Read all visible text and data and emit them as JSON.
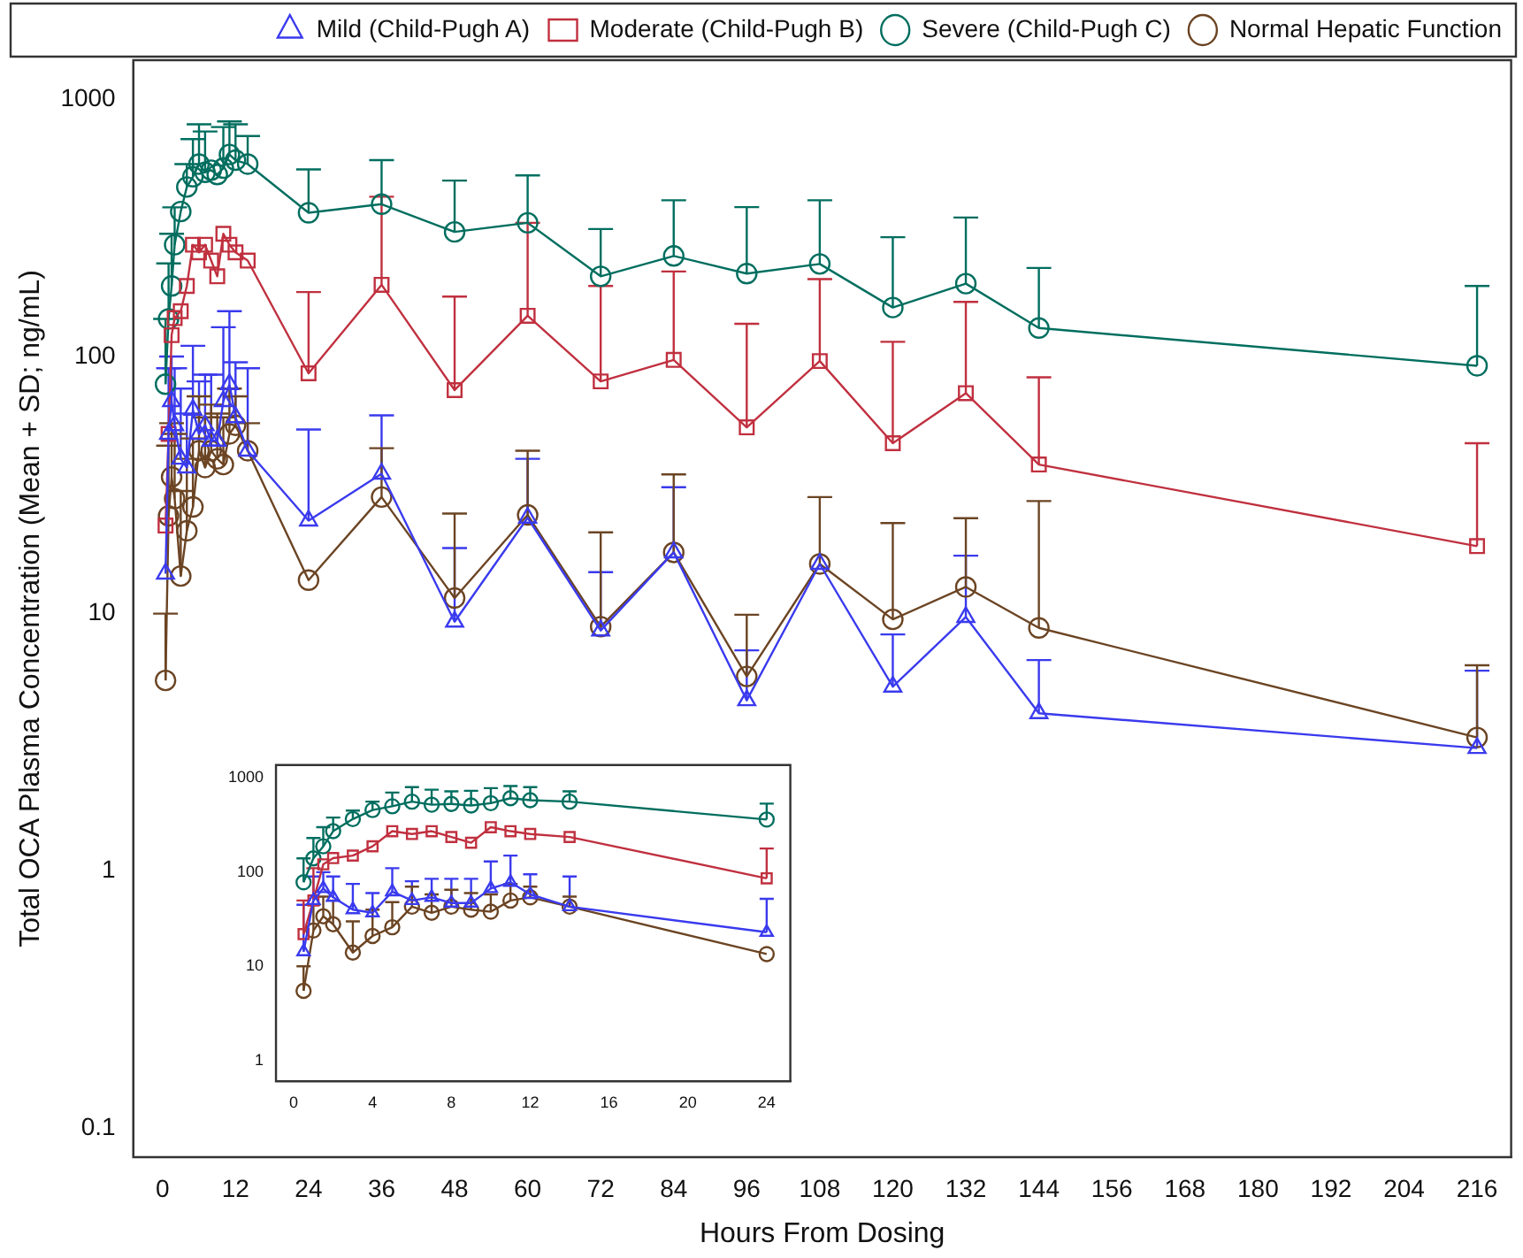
{
  "chart_data": [
    {
      "type": "line",
      "xlabel": "Hours From Dosing",
      "ylabel": "Total OCA Plasma Concentration (Mean + SD; ng/mL)",
      "log": "y",
      "xlim": [
        -4.8,
        221.6
      ],
      "xticks": [
        0,
        12,
        24,
        36,
        48,
        60,
        72,
        84,
        96,
        108,
        120,
        132,
        144,
        156,
        168,
        180,
        192,
        204,
        216
      ],
      "ylim": [
        0.077,
        1420
      ],
      "yticks": [
        0.1,
        1,
        10,
        100,
        1000
      ],
      "grid": false,
      "legend": "top",
      "x": [
        0.5,
        1,
        1.5,
        2,
        3,
        4,
        5,
        6,
        7,
        8,
        9,
        10,
        11,
        12,
        14,
        24,
        36,
        48,
        60,
        72,
        84,
        96,
        108,
        120,
        132,
        144,
        216
      ],
      "series": [
        {
          "name": "Mild (Child-Pugh A)",
          "color": "#3a3aee",
          "marker": "triangle",
          "values": [
            14.3,
            50,
            67,
            54,
            40,
            37,
            62,
            50,
            54,
            47,
            47,
            67,
            78,
            58,
            43,
            23,
            35,
            9.3,
            23.6,
            8.6,
            17.3,
            4.6,
            15.6,
            5.2,
            9.7,
            4.1,
            3.0
          ],
          "errors": [
            null,
            [
              50,
              90
            ],
            [
              67,
              100
            ],
            [
              54,
              90
            ],
            [
              40,
              75
            ],
            [
              37,
              60
            ],
            [
              62,
              110
            ],
            [
              50,
              80
            ],
            [
              54,
              85
            ],
            [
              47,
              85
            ],
            null,
            [
              67,
              130
            ],
            [
              78,
              150
            ],
            [
              58,
              95
            ],
            [
              43,
              90
            ],
            [
              23,
              52
            ],
            [
              35,
              59
            ],
            [
              9.3,
              18
            ],
            [
              23.6,
              40
            ],
            [
              8.6,
              14.5
            ],
            [
              17.3,
              31
            ],
            [
              4.6,
              7.2
            ],
            null,
            [
              5.2,
              8.3
            ],
            [
              9.7,
              16.8
            ],
            [
              4.1,
              6.6
            ],
            [
              3.0,
              6.0
            ]
          ]
        },
        {
          "name": "Moderate (Child-Pugh B)",
          "color": "#c0303f",
          "marker": "square",
          "values": [
            22,
            50,
            121,
            141,
            150,
            188,
            272,
            254,
            272,
            236,
            205,
            300,
            272,
            254,
            236,
            86,
            190,
            74,
            144,
            80,
            97,
            53,
            96,
            46,
            72,
            38,
            18.3
          ],
          "errors": [
            null,
            null,
            null,
            null,
            null,
            null,
            null,
            null,
            null,
            null,
            null,
            null,
            null,
            null,
            null,
            [
              86,
              178
            ],
            [
              190,
              418
            ],
            [
              74,
              171
            ],
            [
              144,
              331
            ],
            [
              80,
              188
            ],
            [
              97,
              214
            ],
            [
              53,
              134
            ],
            [
              96,
              200
            ],
            [
              46,
              114
            ],
            [
              72,
              163
            ],
            [
              38,
              83
            ],
            [
              18.3,
              46
            ]
          ]
        },
        {
          "name": "Severe (Child-Pugh C)",
          "color": "#006e5f",
          "marker": "circle",
          "values": [
            78,
            140,
            188,
            272,
            366,
            456,
            500,
            560,
            520,
            530,
            510,
            540,
            610,
            580,
            560,
            362,
            391,
            305,
            331,
            205,
            246,
            210,
            229,
            155,
            192,
            129,
            92
          ],
          "errors": [
            [
              78,
              140
            ],
            [
              140,
              230
            ],
            [
              188,
              300
            ],
            [
              272,
              380
            ],
            null,
            [
              456,
              560
            ],
            [
              500,
              700
            ],
            [
              560,
              800
            ],
            [
              520,
              750
            ],
            null,
            null,
            [
              540,
              780
            ],
            [
              610,
              820
            ],
            [
              580,
              800
            ],
            [
              560,
              720
            ],
            [
              362,
              534
            ],
            [
              391,
              580
            ],
            [
              305,
              483
            ],
            [
              331,
              506
            ],
            [
              205,
              313
            ],
            [
              246,
              405
            ],
            [
              210,
              381
            ],
            [
              229,
              405
            ],
            [
              155,
              291
            ],
            [
              192,
              347
            ],
            [
              129,
              221
            ],
            [
              92,
              188
            ]
          ]
        },
        {
          "name": "Normal Hepatic Function",
          "color": "#6b4423",
          "marker": "circle",
          "values": [
            5.5,
            24,
            34,
            28,
            14,
            21,
            26,
            43,
            37,
            43,
            40,
            38,
            50,
            54,
            43,
            13.5,
            28.4,
            11.5,
            24.2,
            8.9,
            17.3,
            5.7,
            15.6,
            9.5,
            12.7,
            8.8,
            3.3
          ],
          "errors": [
            [
              5.5,
              10
            ],
            [
              24,
              45
            ],
            [
              34,
              55
            ],
            [
              28,
              50
            ],
            [
              14,
              30
            ],
            [
              21,
              40
            ],
            [
              26,
              48
            ],
            [
              43,
              70
            ],
            [
              37,
              58
            ],
            [
              43,
              65
            ],
            [
              40,
              60
            ],
            [
              38,
              58
            ],
            [
              50,
              75
            ],
            [
              54,
              70
            ],
            [
              43,
              55
            ],
            null,
            [
              28.4,
              44
            ],
            [
              11.5,
              24.5
            ],
            [
              24.2,
              43
            ],
            [
              8.9,
              20.7
            ],
            [
              17.3,
              34.8
            ],
            [
              5.7,
              9.9
            ],
            [
              15.6,
              28.4
            ],
            [
              9.5,
              22.5
            ],
            [
              12.7,
              23.5
            ],
            [
              8.8,
              27.4
            ],
            [
              3.3,
              6.3
            ]
          ]
        }
      ]
    },
    {
      "type": "line",
      "log": "y",
      "xlim": [
        -0.9,
        25.2
      ],
      "xticks": [
        0,
        4,
        8,
        12,
        16,
        20,
        24
      ],
      "ylim": [
        0.64,
        1370
      ],
      "yticks": [
        1,
        10,
        100,
        1000
      ],
      "grid": false,
      "x": [
        0.5,
        1,
        1.5,
        2,
        3,
        4,
        5,
        6,
        7,
        8,
        9,
        10,
        11,
        12,
        14,
        24
      ],
      "series": [
        {
          "color": "#3a3aee",
          "marker": "triangle",
          "values": [
            14.3,
            50,
            67,
            54,
            40,
            37,
            62,
            50,
            54,
            47,
            47,
            67,
            78,
            58,
            43,
            23
          ],
          "errors": [
            [
              14.3,
              45
            ],
            [
              50,
              90
            ],
            [
              67,
              100
            ],
            [
              54,
              90
            ],
            [
              40,
              75
            ],
            [
              37,
              60
            ],
            [
              62,
              110
            ],
            [
              50,
              80
            ],
            [
              54,
              85
            ],
            [
              47,
              85
            ],
            [
              47,
              85
            ],
            [
              67,
              130
            ],
            [
              78,
              150
            ],
            [
              58,
              95
            ],
            [
              43,
              90
            ],
            [
              23,
              52
            ]
          ]
        },
        {
          "color": "#c0303f",
          "marker": "square",
          "values": [
            22,
            50,
            121,
            141,
            150,
            188,
            272,
            254,
            272,
            236,
            205,
            300,
            272,
            254,
            236,
            86
          ],
          "errors": [
            [
              22,
              50
            ],
            [
              50,
              110
            ],
            null,
            null,
            null,
            null,
            null,
            null,
            null,
            null,
            null,
            null,
            null,
            null,
            null,
            [
              86,
              178
            ]
          ]
        },
        {
          "color": "#006e5f",
          "marker": "circle",
          "values": [
            78,
            140,
            188,
            272,
            366,
            456,
            500,
            560,
            520,
            530,
            510,
            540,
            610,
            580,
            560,
            362
          ],
          "errors": [
            [
              78,
              140
            ],
            [
              140,
              230
            ],
            [
              188,
              300
            ],
            [
              272,
              380
            ],
            [
              366,
              450
            ],
            [
              456,
              560
            ],
            [
              500,
              700
            ],
            [
              560,
              800
            ],
            [
              520,
              750
            ],
            [
              530,
              720
            ],
            [
              510,
              730
            ],
            [
              540,
              780
            ],
            [
              610,
              820
            ],
            [
              580,
              800
            ],
            [
              560,
              720
            ],
            [
              362,
              534
            ]
          ]
        },
        {
          "color": "#6b4423",
          "marker": "circle",
          "values": [
            5.5,
            24,
            34,
            28,
            14,
            21,
            26,
            43,
            37,
            43,
            40,
            38,
            50,
            54,
            43,
            13.5
          ],
          "errors": [
            [
              5.5,
              10
            ],
            [
              24,
              45
            ],
            [
              34,
              55
            ],
            [
              28,
              50
            ],
            [
              14,
              30
            ],
            [
              21,
              40
            ],
            [
              26,
              48
            ],
            [
              43,
              70
            ],
            [
              37,
              58
            ],
            [
              43,
              65
            ],
            [
              40,
              60
            ],
            [
              38,
              58
            ],
            [
              50,
              75
            ],
            [
              54,
              70
            ],
            [
              43,
              55
            ],
            null
          ]
        }
      ]
    }
  ]
}
